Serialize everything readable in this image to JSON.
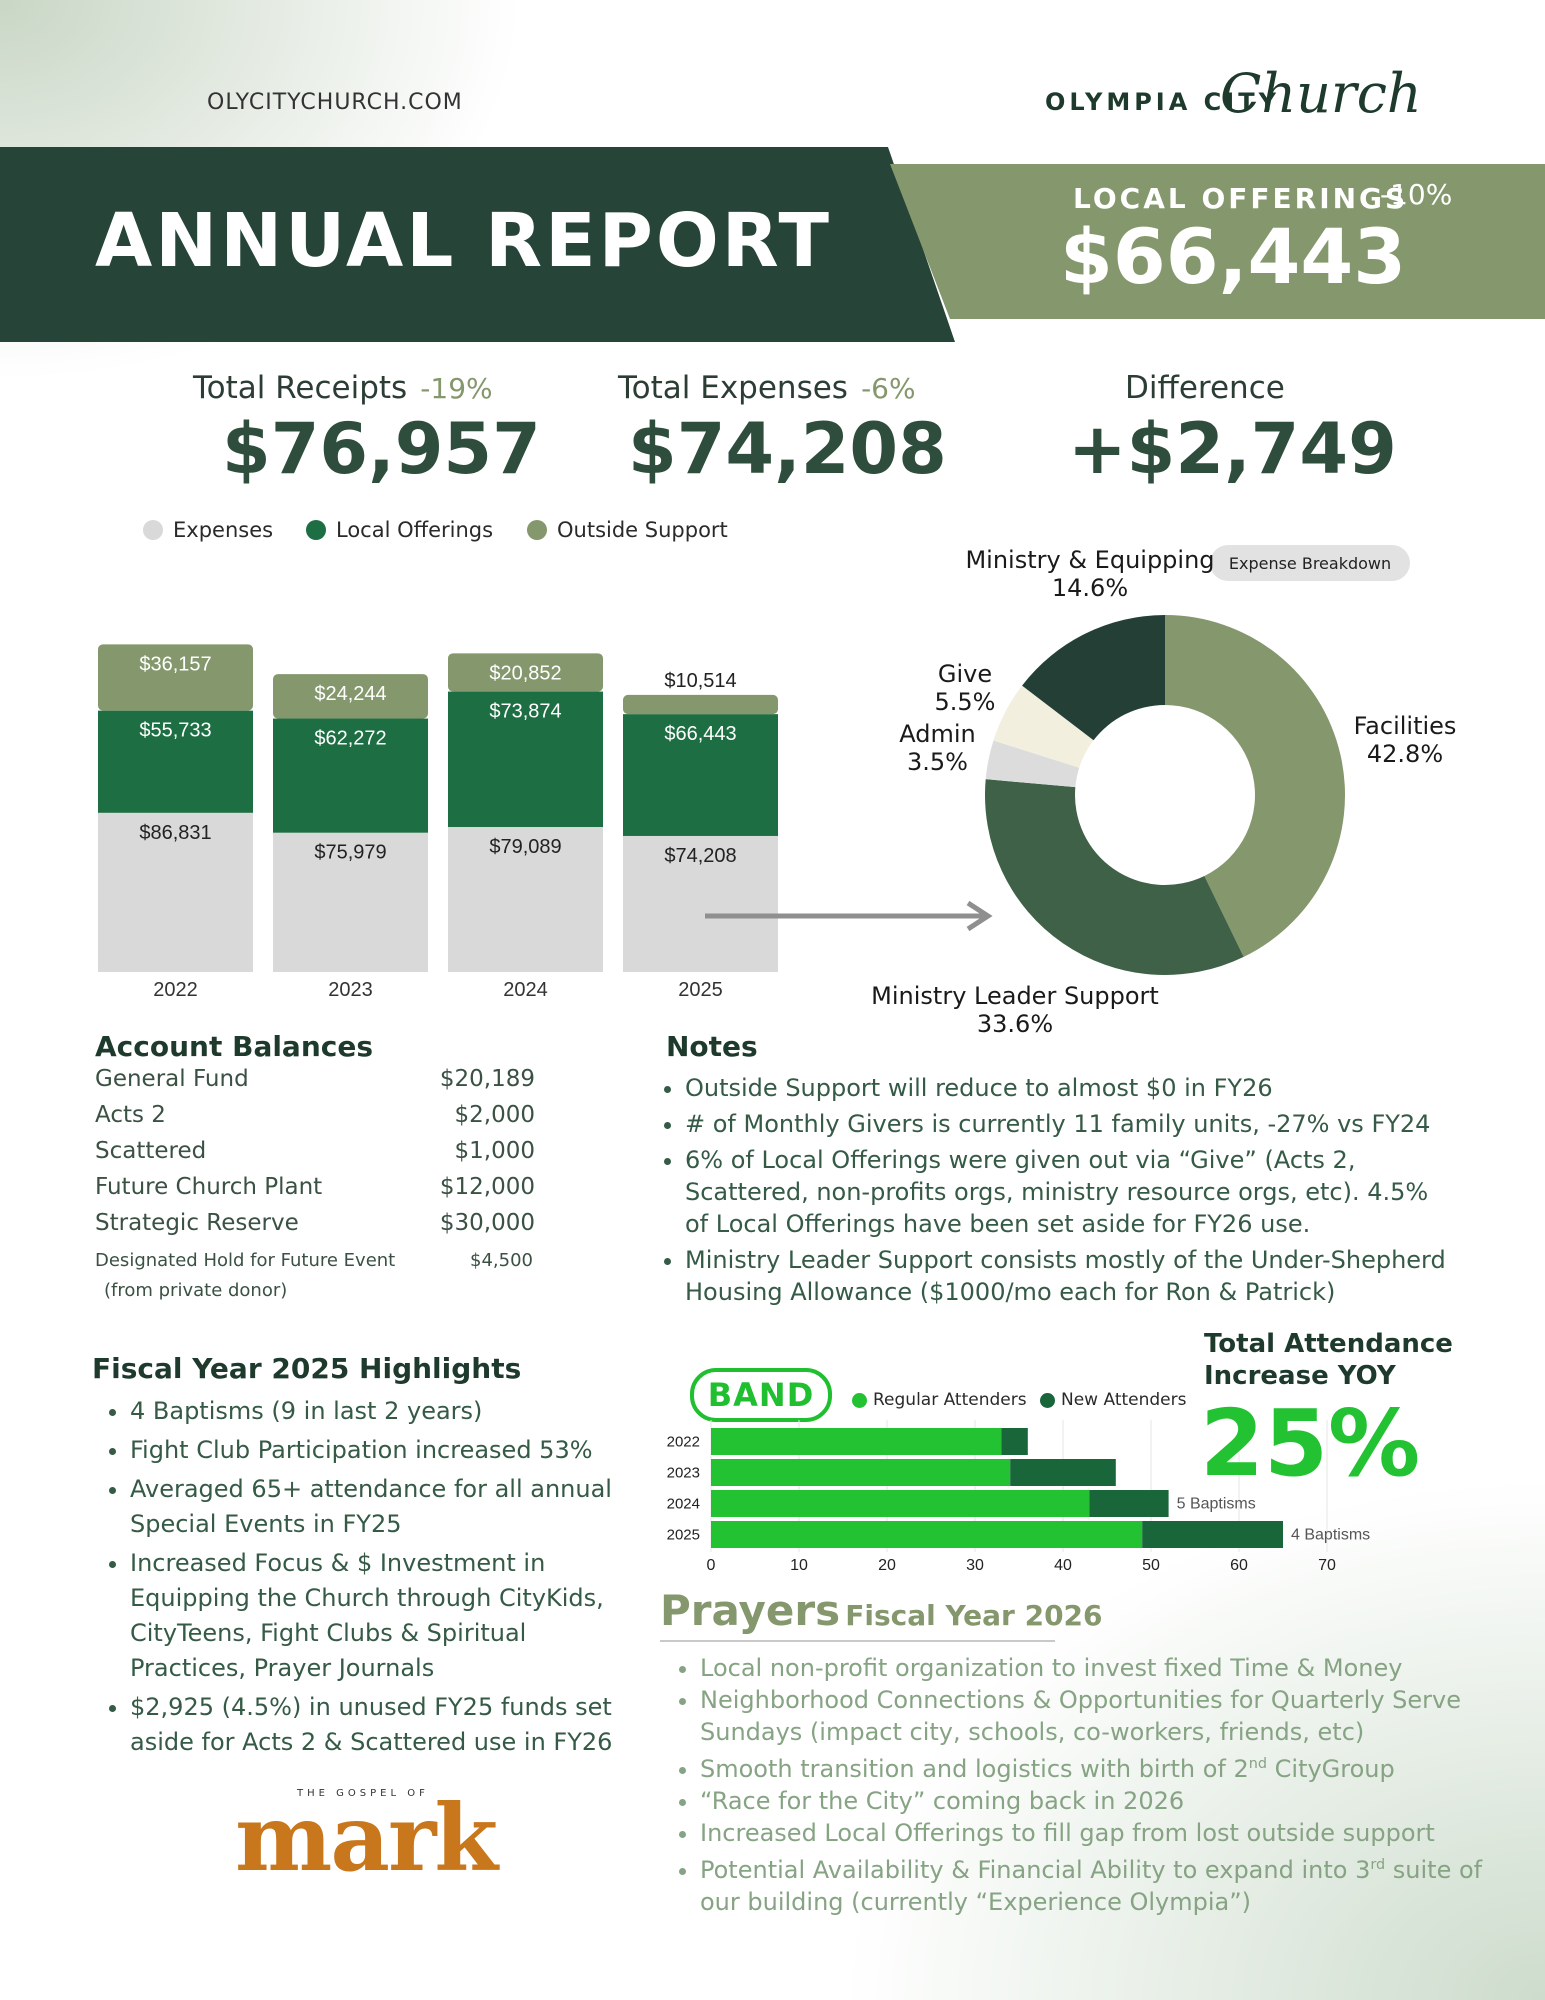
{
  "header": {
    "website": "OLYCITYCHURCH.COM",
    "brand_block": "OLYMPIA CITY",
    "brand_script": "Church",
    "title": "ANNUAL REPORT",
    "local_offerings": {
      "label": "LOCAL OFFERINGS",
      "change": "-10%",
      "value": "$66,443"
    }
  },
  "kpis": [
    {
      "label": "Total Receipts",
      "change": "-19%",
      "value": "$76,957"
    },
    {
      "label": "Total Expenses",
      "change": "-6%",
      "value": "$74,208"
    },
    {
      "label": "Difference",
      "change": "",
      "value": "+$2,749"
    }
  ],
  "colors": {
    "dark": "#264438",
    "sage": "#85976c",
    "green": "#1d6e42",
    "gray": "#d9d9d9",
    "bright": "#22c233",
    "newatt": "#19663a"
  },
  "chart_data": [
    {
      "type": "bar",
      "title": "",
      "stacked": true,
      "categories": [
        "2022",
        "2023",
        "2024",
        "2025"
      ],
      "series": [
        {
          "name": "Expenses",
          "color": "#d9d9d9",
          "values": [
            86831,
            75979,
            79089,
            74208
          ],
          "labels": [
            "$86,831",
            "$75,979",
            "$79,089",
            "$74,208"
          ]
        },
        {
          "name": "Local Offerings",
          "color": "#1d6e42",
          "values": [
            55733,
            62272,
            73874,
            66443
          ],
          "labels": [
            "$55,733",
            "$62,272",
            "$73,874",
            "$66,443"
          ]
        },
        {
          "name": "Outside Support",
          "color": "#85976c",
          "values": [
            36157,
            24244,
            20852,
            10514
          ],
          "labels": [
            "$36,157",
            "$24,244",
            "$20,852",
            "$10,514"
          ]
        }
      ]
    },
    {
      "type": "pie",
      "title": "Expense Breakdown",
      "slices": [
        {
          "name": "Facilities",
          "value": 42.8,
          "label": "42.8%",
          "color": "#85976c"
        },
        {
          "name": "Ministry Leader Support",
          "value": 33.6,
          "label": "33.6%",
          "color": "#3e6147"
        },
        {
          "name": "Admin",
          "value": 3.5,
          "label": "3.5%",
          "color": "#dcdcdc"
        },
        {
          "name": "Give",
          "value": 5.5,
          "label": "5.5%",
          "color": "#f3efdf"
        },
        {
          "name": "Ministry & Equipping",
          "value": 14.6,
          "label": "14.6%",
          "color": "#243f36"
        }
      ]
    },
    {
      "type": "bar",
      "orientation": "horizontal",
      "stacked": true,
      "title": "BAND",
      "categories": [
        "2022",
        "2023",
        "2024",
        "2025"
      ],
      "xlim": [
        0,
        70
      ],
      "xticks": [
        "0",
        "10",
        "20",
        "30",
        "40",
        "50",
        "60",
        "70"
      ],
      "series": [
        {
          "name": "Regular Attenders",
          "color": "#22c233",
          "values": [
            33,
            34,
            43,
            49
          ]
        },
        {
          "name": "New Attenders",
          "color": "#19663a",
          "values": [
            3,
            12,
            9,
            16
          ]
        }
      ],
      "annotations": [
        "",
        "",
        "5 Baptisms",
        "4 Baptisms"
      ]
    }
  ],
  "legend": {
    "expenses": "Expenses",
    "local": "Local Offerings",
    "outside": "Outside Support"
  },
  "donut": {
    "pill": "Expense Breakdown",
    "labels": {
      "ministry_equip": "Ministry & Equipping",
      "ministry_equip_pct": "14.6%",
      "give": "Give",
      "give_pct": "5.5%",
      "admin": "Admin",
      "admin_pct": "3.5%",
      "facilities": "Facilities",
      "facilities_pct": "42.8%",
      "leader": "Ministry Leader Support",
      "leader_pct": "33.6%"
    }
  },
  "balances": {
    "title": "Account Balances",
    "rows": [
      {
        "name": "General Fund",
        "value": "$20,189"
      },
      {
        "name": "Acts 2",
        "value": "$2,000"
      },
      {
        "name": "Scattered",
        "value": "$1,000"
      },
      {
        "name": "Future Church Plant",
        "value": "$12,000"
      },
      {
        "name": "Strategic Reserve",
        "value": "$30,000"
      }
    ],
    "hold_name": "Designated Hold for Future Event",
    "hold_note": "(from private donor)",
    "hold_value": "$4,500"
  },
  "notes": {
    "title": "Notes",
    "items": [
      "Outside Support will reduce to almost $0 in FY26",
      "# of Monthly Givers is currently 11 family units, -27% vs FY24",
      "6% of Local Offerings were given out via “Give” (Acts 2, Scattered, non-profits orgs, ministry resource orgs, etc). 4.5% of Local Offerings have been set aside for FY26 use.",
      "Ministry Leader Support consists mostly of the Under-Shepherd Housing Allowance ($1000/mo each for Ron & Patrick)"
    ]
  },
  "highlights": {
    "title": "Fiscal Year 2025 Highlights",
    "items": [
      "4 Baptisms (9 in last 2 years)",
      "Fight Club Participation increased 53%",
      "Averaged 65+ attendance for all annual Special Events in FY25",
      "Increased Focus & $ Investment in Equipping the Church through CityKids, CityTeens, Fight Clubs & Spiritual Practices, Prayer Journals",
      "$2,925 (4.5%) in unused FY25 funds set aside for Acts 2 & Scattered use in FY26"
    ]
  },
  "attendance": {
    "band": "BAND",
    "legend_regular": "Regular Attenders",
    "legend_new": "New Attenders",
    "title_line1": "Total Attendance",
    "title_line2": "Increase YOY",
    "value": "25%"
  },
  "prayers": {
    "title": "Prayers",
    "subtitle": "Fiscal Year 2026",
    "items": [
      {
        "text": "Local non-profit organization to invest fixed Time & Money"
      },
      {
        "text": "Neighborhood Connections & Opportunities for Quarterly Serve Sundays (impact city, schools, co-workers, friends, etc)"
      },
      {
        "text": "Smooth transition and logistics with birth of 2",
        "sup": "nd",
        "after": " CityGroup"
      },
      {
        "text": "“Race for the City” coming back in 2026"
      },
      {
        "text": "Increased Local Offerings to fill gap from lost outside support"
      },
      {
        "text": "Potential Availability & Financial Ability to expand into 3",
        "sup": "rd",
        "after": " suite of our building (currently “Experience Olympia”)"
      }
    ]
  },
  "gospel": {
    "small": "THE GOSPEL OF",
    "big": "mark"
  }
}
